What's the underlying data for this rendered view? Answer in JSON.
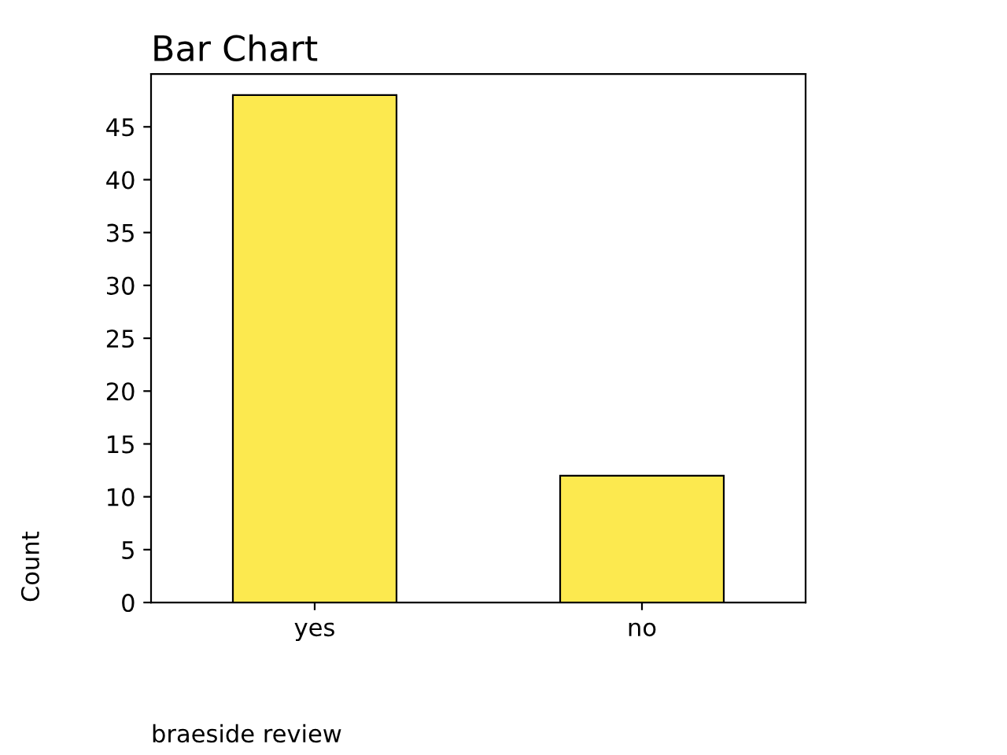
{
  "chart_data": {
    "type": "bar",
    "title": "Bar Chart",
    "xlabel": "braeside review",
    "ylabel": "Count",
    "categories": [
      "yes",
      "no"
    ],
    "values": [
      48,
      12
    ],
    "color": "#fce94f",
    "ylim": [
      0,
      50
    ],
    "yticks": [
      0,
      5,
      10,
      15,
      20,
      25,
      30,
      35,
      40,
      45
    ],
    "grid": false
  }
}
